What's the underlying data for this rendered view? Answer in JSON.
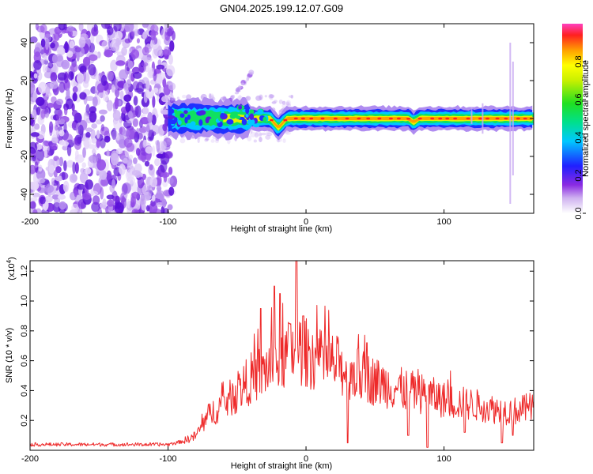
{
  "title": "GN04.2025.199.12.07.G09",
  "colorbar": {
    "label": "Normalized spectral amplitude",
    "range": [
      0,
      1
    ],
    "ticks": [
      0.0,
      0.2,
      0.4,
      0.6,
      0.8
    ],
    "tick_labels": [
      "0.0",
      "0.2",
      "0.4",
      "0.6",
      "0.8"
    ]
  },
  "chart_data": [
    {
      "type": "heatmap",
      "title": "GN04.2025.199.12.07.G09",
      "xlabel": "Height of straight line (km)",
      "ylabel": "Frequency (Hz)",
      "xlim": [
        -200,
        165
      ],
      "ylim": [
        -50,
        50
      ],
      "x_ticks": [
        -200,
        -100,
        0,
        100
      ],
      "x_tick_labels": [
        "-200",
        "-100",
        "0",
        "100"
      ],
      "y_ticks": [
        -40,
        -20,
        0,
        20,
        40
      ],
      "y_tick_labels": [
        "-40",
        "-20",
        "0",
        "20",
        "40"
      ],
      "colormap": "rainbow",
      "features": {
        "noise_region_x": [
          -200,
          -100
        ],
        "signal_band_center_hz": 0,
        "signal_start_km": -100,
        "signal_end_km": 165,
        "dip_at_km": -20,
        "dip_hz": -5,
        "secondary_track": {
          "x": [
            -60,
            -38
          ],
          "y": [
            5,
            25
          ]
        }
      }
    },
    {
      "type": "line",
      "xlabel": "Height of straight line (km)",
      "ylabel": "SNR (10 * v/v)",
      "scale_label": "(x10",
      "scale_exponent": "4",
      "scale_suffix": ")",
      "xlim": [
        -200,
        165
      ],
      "ylim": [
        0,
        1.27
      ],
      "x_ticks": [
        -200,
        -100,
        0,
        100
      ],
      "x_tick_labels": [
        "-200",
        "-100",
        "0",
        "100"
      ],
      "y_ticks": [
        0.2,
        0.4,
        0.6,
        0.8,
        1.0,
        1.2
      ],
      "y_tick_labels": [
        "0.2",
        "0.4",
        "0.6",
        "0.8",
        "1.0",
        "1.2"
      ],
      "series": [
        {
          "color": "#ee2a2a",
          "envelope_x": [
            -200,
            -100,
            -90,
            -80,
            -70,
            -60,
            -50,
            -40,
            -30,
            -25,
            -20,
            -15,
            -10,
            -5,
            0,
            10,
            20,
            30,
            40,
            50,
            60,
            70,
            80,
            90,
            100,
            110,
            120,
            130,
            140,
            150,
            165
          ],
          "envelope_y": [
            0.04,
            0.04,
            0.06,
            0.1,
            0.25,
            0.32,
            0.4,
            0.5,
            0.55,
            0.6,
            0.62,
            0.65,
            0.68,
            0.7,
            0.68,
            0.62,
            0.6,
            0.55,
            0.52,
            0.48,
            0.45,
            0.42,
            0.4,
            0.38,
            0.35,
            0.33,
            0.32,
            0.3,
            0.28,
            0.27,
            0.3
          ],
          "peaks": [
            {
              "x": -33,
              "y": 0.95
            },
            {
              "x": -23,
              "y": 1.1
            },
            {
              "x": -19,
              "y": 1.05
            },
            {
              "x": -12,
              "y": 0.85
            },
            {
              "x": -7,
              "y": 1.27
            },
            {
              "x": -2,
              "y": 0.9
            },
            {
              "x": 44,
              "y": 0.72
            }
          ],
          "dips": [
            {
              "x": 30,
              "y": 0.05
            },
            {
              "x": 74,
              "y": 0.1
            },
            {
              "x": 88,
              "y": 0.02
            },
            {
              "x": 115,
              "y": 0.12
            },
            {
              "x": 142,
              "y": 0.05
            },
            {
              "x": 150,
              "y": 0.1
            }
          ]
        }
      ]
    }
  ]
}
